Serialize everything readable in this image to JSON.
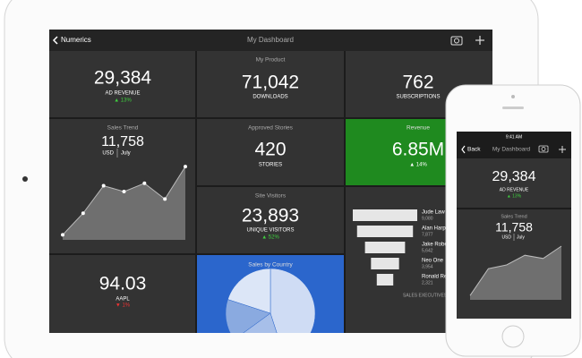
{
  "ipad": {
    "nav": {
      "back": "Numerics",
      "title": "My Dashboard"
    },
    "ad_revenue": {
      "value": "29,384",
      "label": "AD REVENUE",
      "change": "▲ 13%"
    },
    "product": {
      "title": "My Product",
      "value": "71,042",
      "label": "DOWNLOADS"
    },
    "subscriptions": {
      "value": "762",
      "label": "SUBSCRIPTIONS"
    },
    "sales_trend": {
      "title": "Sales Trend",
      "value": "11,758",
      "unit": "USD",
      "period": "July",
      "chart": {
        "type": "area",
        "values": [
          6,
          32,
          65,
          58,
          68,
          49,
          88
        ]
      }
    },
    "stories": {
      "title": "Approved Stories",
      "value": "420",
      "label": "STORIES"
    },
    "revenue": {
      "title": "Revenue",
      "value": "6.85M",
      "change": "▲ 14%"
    },
    "visitors": {
      "title": "Site Visitors",
      "value": "23,893",
      "label": "UNIQUE VISITORS",
      "change": "▲ 52%"
    },
    "funnel": {
      "type": "funnel",
      "categories": [
        "Jude Law",
        "Alan Harp",
        "Jake Robe",
        "Neo One",
        "Ronald Re"
      ],
      "values": [
        9080,
        7877,
        5642,
        3954,
        2321
      ],
      "value_labels": [
        "9,080",
        "7,877",
        "5,642",
        "3,954",
        "2,321"
      ],
      "footer": "SALES  EXECUTIVES"
    },
    "aapl": {
      "value": "94.03",
      "label": "AAPL",
      "change": "▼ 1%"
    },
    "country": {
      "title": "Sales by Country",
      "chart": {
        "type": "pie",
        "values": [
          45,
          20,
          15,
          20
        ],
        "colors": [
          "#cfdcf4",
          "#a7bfe9",
          "#8aaae0",
          "#dce6f7"
        ]
      }
    }
  },
  "iphone": {
    "status": "9:41 AM",
    "nav": {
      "back": "Back",
      "title": "My Dashboard"
    },
    "ad_revenue": {
      "value": "29,384",
      "label": "AD REVENUE",
      "change": "▲ 13%"
    },
    "sales_trend": {
      "title": "Sales Trend",
      "value": "11,758",
      "unit": "USD",
      "period": "July",
      "chart": {
        "type": "area",
        "values": [
          8,
          58,
          65,
          83,
          77,
          100
        ]
      }
    }
  }
}
